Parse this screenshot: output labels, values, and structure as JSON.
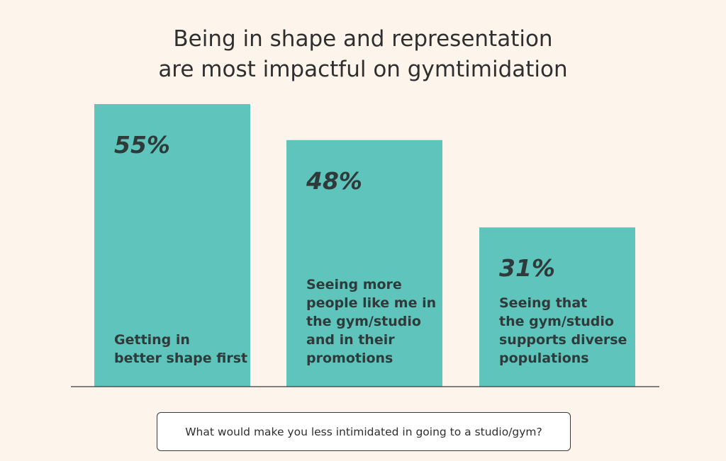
{
  "chart_data": {
    "type": "bar",
    "title_lines": [
      "Being in shape and representation",
      "are most impactful on gymtimidation"
    ],
    "categories": [
      "Getting in\nbetter shape first",
      "Seeing more\npeople like me in\nthe gym/studio\nand in their\npromotions",
      "Seeing that\nthe gym/studio\nsupports diverse\npopulations"
    ],
    "values": [
      55,
      48,
      31
    ],
    "value_labels": [
      "55%",
      "48%",
      "31%"
    ],
    "unit": "%",
    "xlabel": "What would make you less intimidated in going to a studio/gym?",
    "ylabel": "",
    "ylim": [
      0,
      55
    ],
    "grid": false,
    "legend": "none",
    "colors": {
      "bar": "#5fc5bc",
      "baseline": "#3a3a3a",
      "background": "#fdf5ec"
    }
  }
}
